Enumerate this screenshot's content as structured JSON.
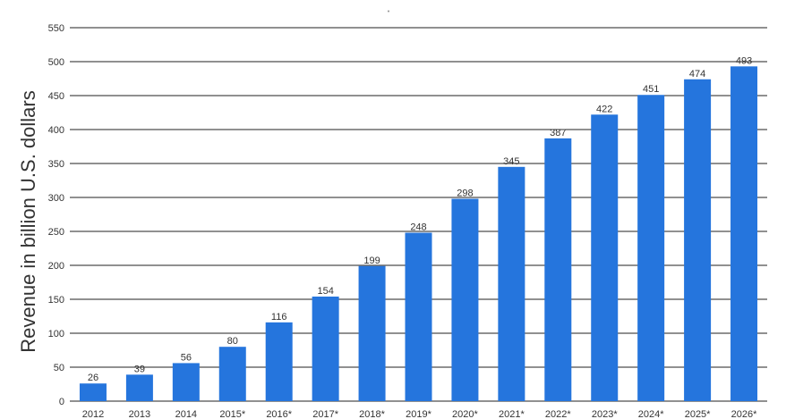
{
  "chart_data": {
    "type": "bar",
    "title": "",
    "header_mark": "ˮ",
    "xlabel": "",
    "ylabel": "Revenue in billion U.S. dollars",
    "categories": [
      "2012",
      "2013",
      "2014",
      "2015*",
      "2016*",
      "2017*",
      "2018*",
      "2019*",
      "2020*",
      "2021*",
      "2022*",
      "2023*",
      "2024*",
      "2025*",
      "2026*"
    ],
    "values": [
      26,
      39,
      56,
      80,
      116,
      154,
      199,
      248,
      298,
      345,
      387,
      422,
      451,
      474,
      493
    ],
    "data_labels": [
      "26",
      "39",
      "56",
      "80",
      "116",
      "154",
      "199",
      "248",
      "298",
      "345",
      "387",
      "422",
      "451",
      "474",
      "493"
    ],
    "ylim": [
      0,
      550
    ],
    "yticks": [
      0,
      50,
      100,
      150,
      200,
      250,
      300,
      350,
      400,
      450,
      500,
      550
    ],
    "ytick_labels": [
      "0",
      "50",
      "100",
      "150",
      "200",
      "250",
      "300",
      "350",
      "400",
      "450",
      "500",
      "550"
    ],
    "grid": true,
    "legend": "none",
    "colors": {
      "bar": "#2575DD",
      "grid": "#222222",
      "text": "#333333"
    }
  }
}
